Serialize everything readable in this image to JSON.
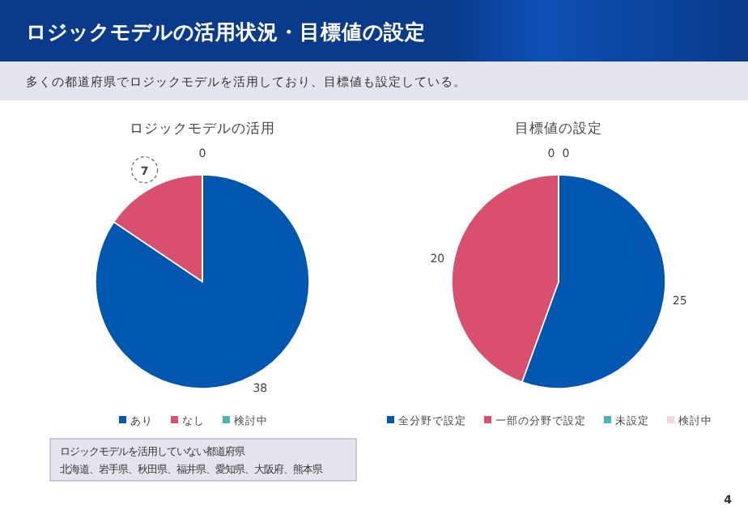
{
  "chart_data": [
    {
      "type": "other",
      "title": "ロジックモデルの活用状況・目標値の設定",
      "subtitle": "多くの都道府県でロジックモデルを活用しており、目標値も設定している。",
      "annotations": [
        "4"
      ]
    },
    {
      "type": "pie",
      "title": "ロジックモデルの活用",
      "categories": [
        "あり",
        "なし",
        "検討中"
      ],
      "values": [
        38,
        7,
        0
      ],
      "value_labels": [
        "38",
        "7",
        "0"
      ],
      "colors": [
        "#0057b0",
        "#d94f6e",
        "#4db6ac"
      ],
      "legend": "bottom"
    },
    {
      "type": "pie",
      "title": "目標値の設定",
      "categories": [
        "全分野で設定",
        "一部の分野で設定",
        "未設定",
        "検討中"
      ],
      "values": [
        25,
        20,
        0,
        0
      ],
      "value_labels": [
        "25",
        "20",
        "0",
        "0"
      ],
      "colors": [
        "#0057b0",
        "#d94f6e",
        "#4db6ac",
        "#f9d5dd"
      ],
      "legend": "bottom"
    },
    {
      "type": "other",
      "title": "ロジックモデルを活用していない都道府県",
      "annotations": [
        "北海道、岩手県、秋田県、福井県、愛知県、大阪府、熊本県"
      ]
    }
  ]
}
